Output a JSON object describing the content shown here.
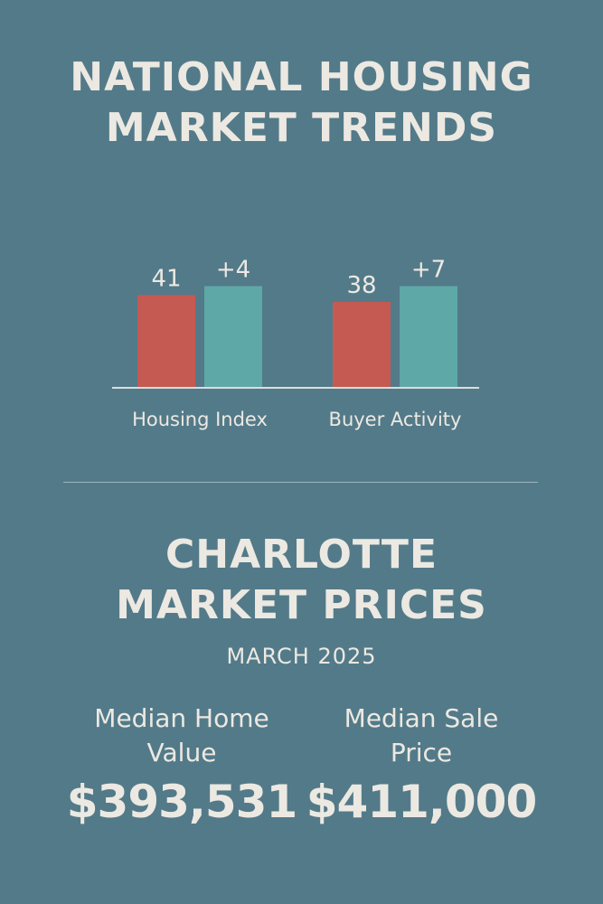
{
  "colors": {
    "background": "#537a89",
    "bar_red": "#c55a52",
    "bar_teal": "#5ea8a7",
    "text": "#ece9e2"
  },
  "header": {
    "title": "NATIONAL HOUSING\nMARKET TRENDS"
  },
  "chart_data": {
    "type": "bar",
    "categories": [
      "Housing Index",
      "Buyer Activity"
    ],
    "series": [
      {
        "values": [
          41,
          38
        ],
        "labels": [
          "41",
          "38"
        ],
        "color": "#c55a52"
      },
      {
        "values": [
          45,
          45
        ],
        "labels": [
          "+4",
          "+7"
        ],
        "color": "#5ea8a7"
      }
    ],
    "ylim": [
      0,
      50
    ],
    "grid": false
  },
  "section2": {
    "title": "CHARLOTTE\nMARKET PRICES",
    "subtitle": "MARCH 2025",
    "stats": [
      {
        "label": "Median Home\nValue",
        "value": "$393,531"
      },
      {
        "label": "Median Sale\nPrice",
        "value": "$411,000"
      }
    ]
  }
}
